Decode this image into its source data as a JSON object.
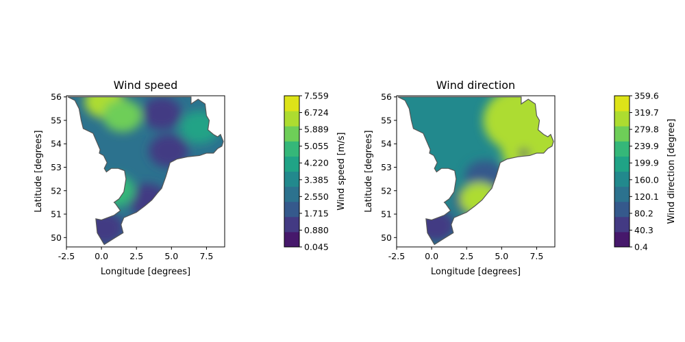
{
  "chart_data": [
    {
      "type": "contourf-map",
      "title": "Wind speed",
      "xlabel": "Longitude [degrees]",
      "ylabel": "Latitude [degrees]",
      "xlim": [
        -2.5,
        8.8
      ],
      "ylim": [
        49.6,
        56.05
      ],
      "xticks": [
        "-2.5",
        "0.0",
        "2.5",
        "5.0",
        "7.5"
      ],
      "yticks": [
        "50",
        "51",
        "52",
        "53",
        "54",
        "55",
        "56"
      ],
      "colorbar": {
        "label": "Wind speed [m/s]",
        "levels": [
          "0.045",
          "0.880",
          "1.715",
          "2.550",
          "3.385",
          "4.220",
          "5.055",
          "5.889",
          "6.724",
          "7.559"
        ],
        "colors": [
          "#46186b",
          "#433a83",
          "#35598c",
          "#2c728e",
          "#22898d",
          "#20a386",
          "#35b779",
          "#6ece58",
          "#addc30",
          "#dde318"
        ]
      },
      "features": [
        {
          "lon": 0.2,
          "lat": 55.8,
          "level": 8
        },
        {
          "lon": 1.5,
          "lat": 55.2,
          "level": 7
        },
        {
          "lon": 4.3,
          "lat": 55.3,
          "level": 1
        },
        {
          "lon": 4.8,
          "lat": 53.7,
          "level": 1
        },
        {
          "lon": 3.3,
          "lat": 51.6,
          "level": 1
        },
        {
          "lon": 1.0,
          "lat": 52.0,
          "level": 6
        },
        {
          "lon": 7.0,
          "lat": 54.7,
          "level": 5
        },
        {
          "lon": 0.2,
          "lat": 50.4,
          "level": 1
        }
      ]
    },
    {
      "type": "contourf-map",
      "title": "Wind direction",
      "xlabel": "Longitude [degrees]",
      "ylabel": "Latitude [degrees]",
      "xlim": [
        -2.5,
        8.8
      ],
      "ylim": [
        49.6,
        56.05
      ],
      "xticks": [
        "-2.5",
        "0.0",
        "2.5",
        "5.0",
        "7.5"
      ],
      "yticks": [
        "50",
        "51",
        "52",
        "53",
        "54",
        "55",
        "56"
      ],
      "colorbar": {
        "label": "Wind direction [degree]",
        "levels": [
          "0.4",
          "40.3",
          "80.2",
          "120.1",
          "160.0",
          "199.9",
          "239.9",
          "279.8",
          "319.7",
          "359.6"
        ],
        "colors": [
          "#46186b",
          "#433a83",
          "#35598c",
          "#2c728e",
          "#22898d",
          "#20a386",
          "#35b779",
          "#6ece58",
          "#addc30",
          "#dde318"
        ]
      },
      "features": [
        {
          "lon": 6.5,
          "lat": 55.0,
          "level": 8
        },
        {
          "lon": 7.8,
          "lat": 53.8,
          "level": 8
        },
        {
          "lon": 3.8,
          "lat": 52.6,
          "level": 2
        },
        {
          "lon": 3.0,
          "lat": 51.6,
          "level": 1
        },
        {
          "lon": 3.4,
          "lat": 51.65,
          "level": 8
        },
        {
          "lon": 0.3,
          "lat": 50.5,
          "level": 1
        },
        {
          "lon": 6.6,
          "lat": 53.6,
          "level": 0
        }
      ]
    }
  ]
}
